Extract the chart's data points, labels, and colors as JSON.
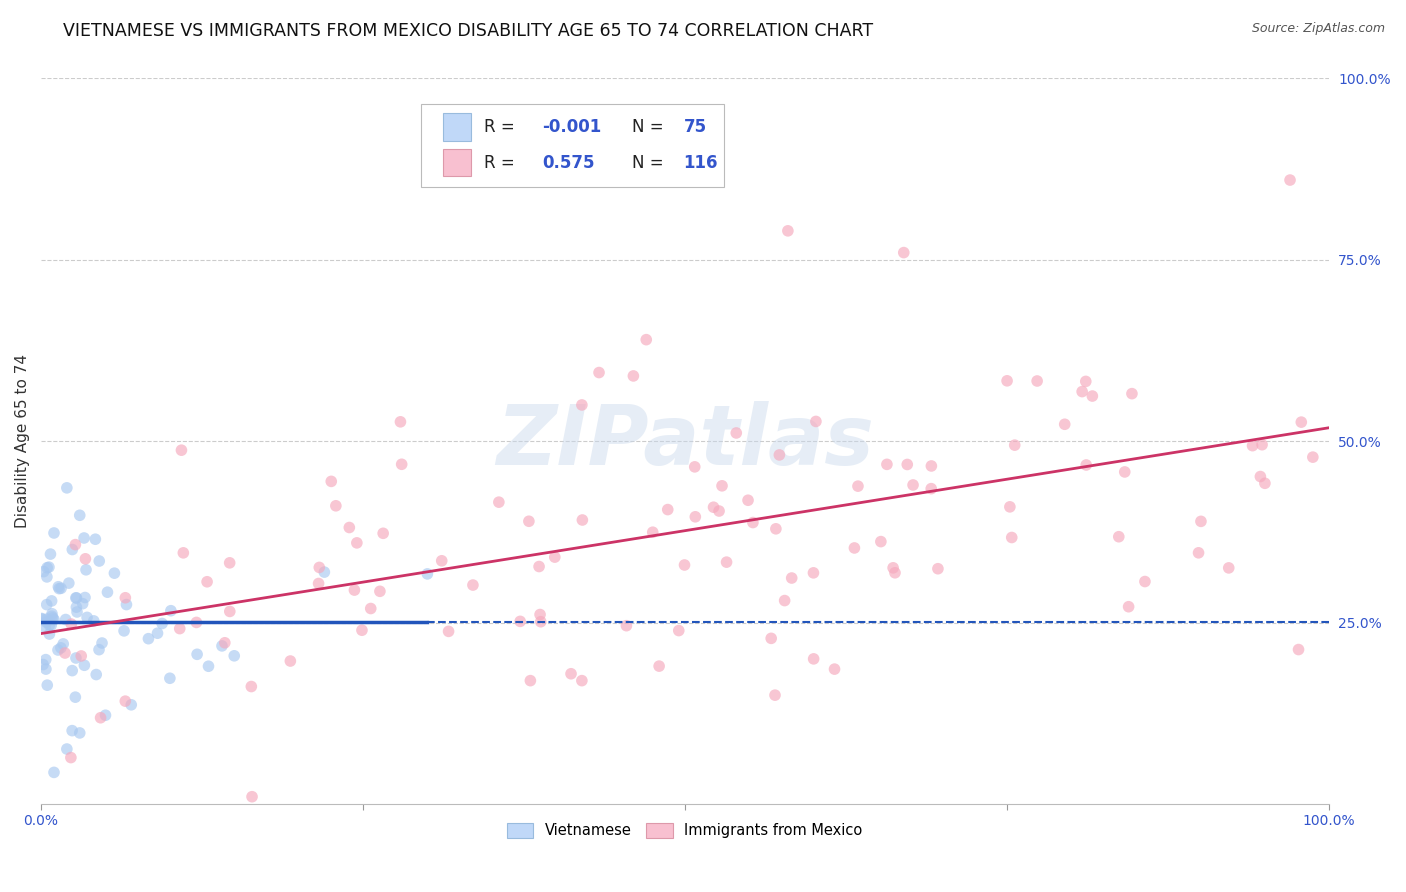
{
  "title": "VIETNAMESE VS IMMIGRANTS FROM MEXICO DISABILITY AGE 65 TO 74 CORRELATION CHART",
  "source": "Source: ZipAtlas.com",
  "ylabel": "Disability Age 65 to 74",
  "xlim": [
    0,
    1
  ],
  "ylim": [
    0,
    1
  ],
  "ytick_labels_right": [
    "100.0%",
    "75.0%",
    "50.0%",
    "25.0%"
  ],
  "ytick_vals_right": [
    1.0,
    0.75,
    0.5,
    0.25
  ],
  "viet_R": -0.001,
  "viet_N": 75,
  "mex_R": 0.575,
  "mex_N": 116,
  "viet_color": "#a8c8f0",
  "mex_color": "#f5a8bc",
  "viet_line_color": "#2255bb",
  "mex_line_color": "#cc3366",
  "legend_box_color_viet": "#c0d8f8",
  "legend_box_color_mex": "#f8c0d0",
  "grid_color": "#cccccc",
  "background_color": "#ffffff",
  "title_fontsize": 12.5,
  "axis_label_fontsize": 11,
  "tick_fontsize": 10,
  "legend_fontsize": 13,
  "text_color_blue": "#3355cc",
  "text_color_dark": "#333333",
  "scatter_size": 70,
  "scatter_alpha": 0.65
}
